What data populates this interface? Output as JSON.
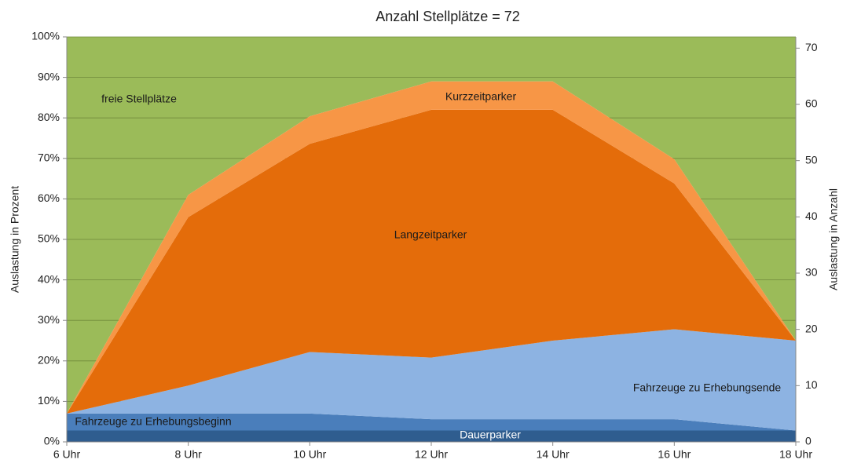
{
  "chart_data": {
    "type": "stacked_area",
    "title": "Anzahl Stellplätze = 72",
    "ylabel": "Auslastung in Prozent",
    "y2label": "Auslastung in Anzahl",
    "categories": [
      "6 Uhr",
      "8 Uhr",
      "10 Uhr",
      "12 Uhr",
      "14 Uhr",
      "16 Uhr",
      "18 Uhr"
    ],
    "series": [
      {
        "name": "Dauerparker",
        "color": "#2f5d8f",
        "values": [
          2.8,
          2.8,
          2.8,
          2.8,
          2.8,
          2.8,
          2.8
        ]
      },
      {
        "name": "Fahrzeuge zu Erhebungsbeginn",
        "color": "#4a7ebb",
        "values": [
          4.2,
          4.2,
          4.2,
          2.8,
          2.8,
          2.8,
          0
        ]
      },
      {
        "name": "Fahrzeuge zu Erhebungsende",
        "color": "#8db3e2",
        "values": [
          0,
          6.9,
          15.2,
          15.2,
          19.4,
          22.2,
          22.2
        ]
      },
      {
        "name": "Langzeitparker",
        "color": "#e46c0a",
        "values": [
          0,
          41.6,
          51.4,
          61.2,
          57,
          36,
          0
        ]
      },
      {
        "name": "Kurzzeitparker",
        "color": "#f79646",
        "values": [
          0,
          5.5,
          6.8,
          7,
          7,
          6,
          0
        ]
      },
      {
        "name": "freie Stellplätze",
        "color": "#9bbb59",
        "values": [
          93,
          39,
          19.6,
          11,
          11,
          30.2,
          75
        ]
      }
    ],
    "ylim": [
      0,
      100
    ],
    "yticks": [
      {
        "value": 0,
        "label": "0%"
      },
      {
        "value": 10,
        "label": "10%"
      },
      {
        "value": 20,
        "label": "20%"
      },
      {
        "value": 30,
        "label": "30%"
      },
      {
        "value": 40,
        "label": "40%"
      },
      {
        "value": 50,
        "label": "50%"
      },
      {
        "value": 60,
        "label": "60%"
      },
      {
        "value": 70,
        "label": "70%"
      },
      {
        "value": 80,
        "label": "80%"
      },
      {
        "value": 90,
        "label": "90%"
      },
      {
        "value": 100,
        "label": "100%"
      }
    ],
    "y2lim": [
      0,
      72
    ],
    "y2ticks": [
      0,
      10,
      20,
      30,
      40,
      50,
      60,
      70
    ],
    "grid": true
  }
}
